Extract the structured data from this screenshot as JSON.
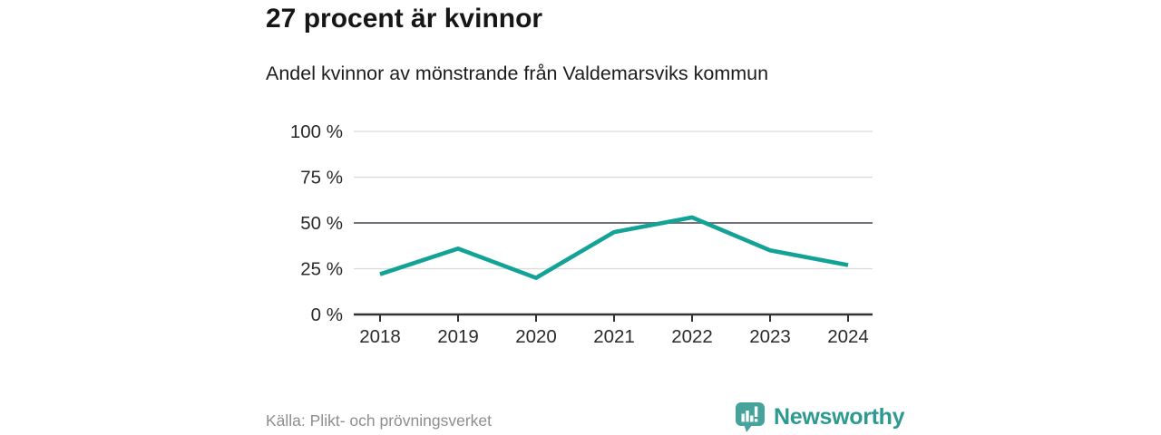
{
  "header": {
    "title": "27 procent är kvinnor",
    "subtitle": "Andel kvinnor av mönstrande från Valdemarsviks kommun"
  },
  "chart_data": {
    "type": "line",
    "title": "Andel kvinnor av mönstrande från Valdemarsviks kommun",
    "x": [
      "2018",
      "2019",
      "2020",
      "2021",
      "2022",
      "2023",
      "2024"
    ],
    "series": [
      {
        "name": "Andel kvinnor av mönstrande",
        "values": [
          22,
          36,
          20,
          45,
          53,
          35,
          27
        ]
      }
    ],
    "xlabel": "",
    "ylabel": "",
    "ylim": [
      0,
      100
    ],
    "yticks": [
      0,
      25,
      50,
      75,
      100
    ],
    "ytick_suffix": " %",
    "grid": true,
    "highlight_gridline_at": 50,
    "legend_position": "none",
    "line_color": "#12a296",
    "grid_color": "#dadada",
    "highlight_grid_color": "#73737d",
    "axis_color": "#333333",
    "tick_label_color": "#2b2b2b"
  },
  "footer": {
    "source": "Källa: Plikt- och prövningsverket",
    "brand": "Newsworthy",
    "brand_color": "#2d9a92",
    "logo_color": "#46a39b",
    "logo_bar_color": "#ffffff",
    "logo_icon": "bar-chart-speech-bubble-icon"
  }
}
